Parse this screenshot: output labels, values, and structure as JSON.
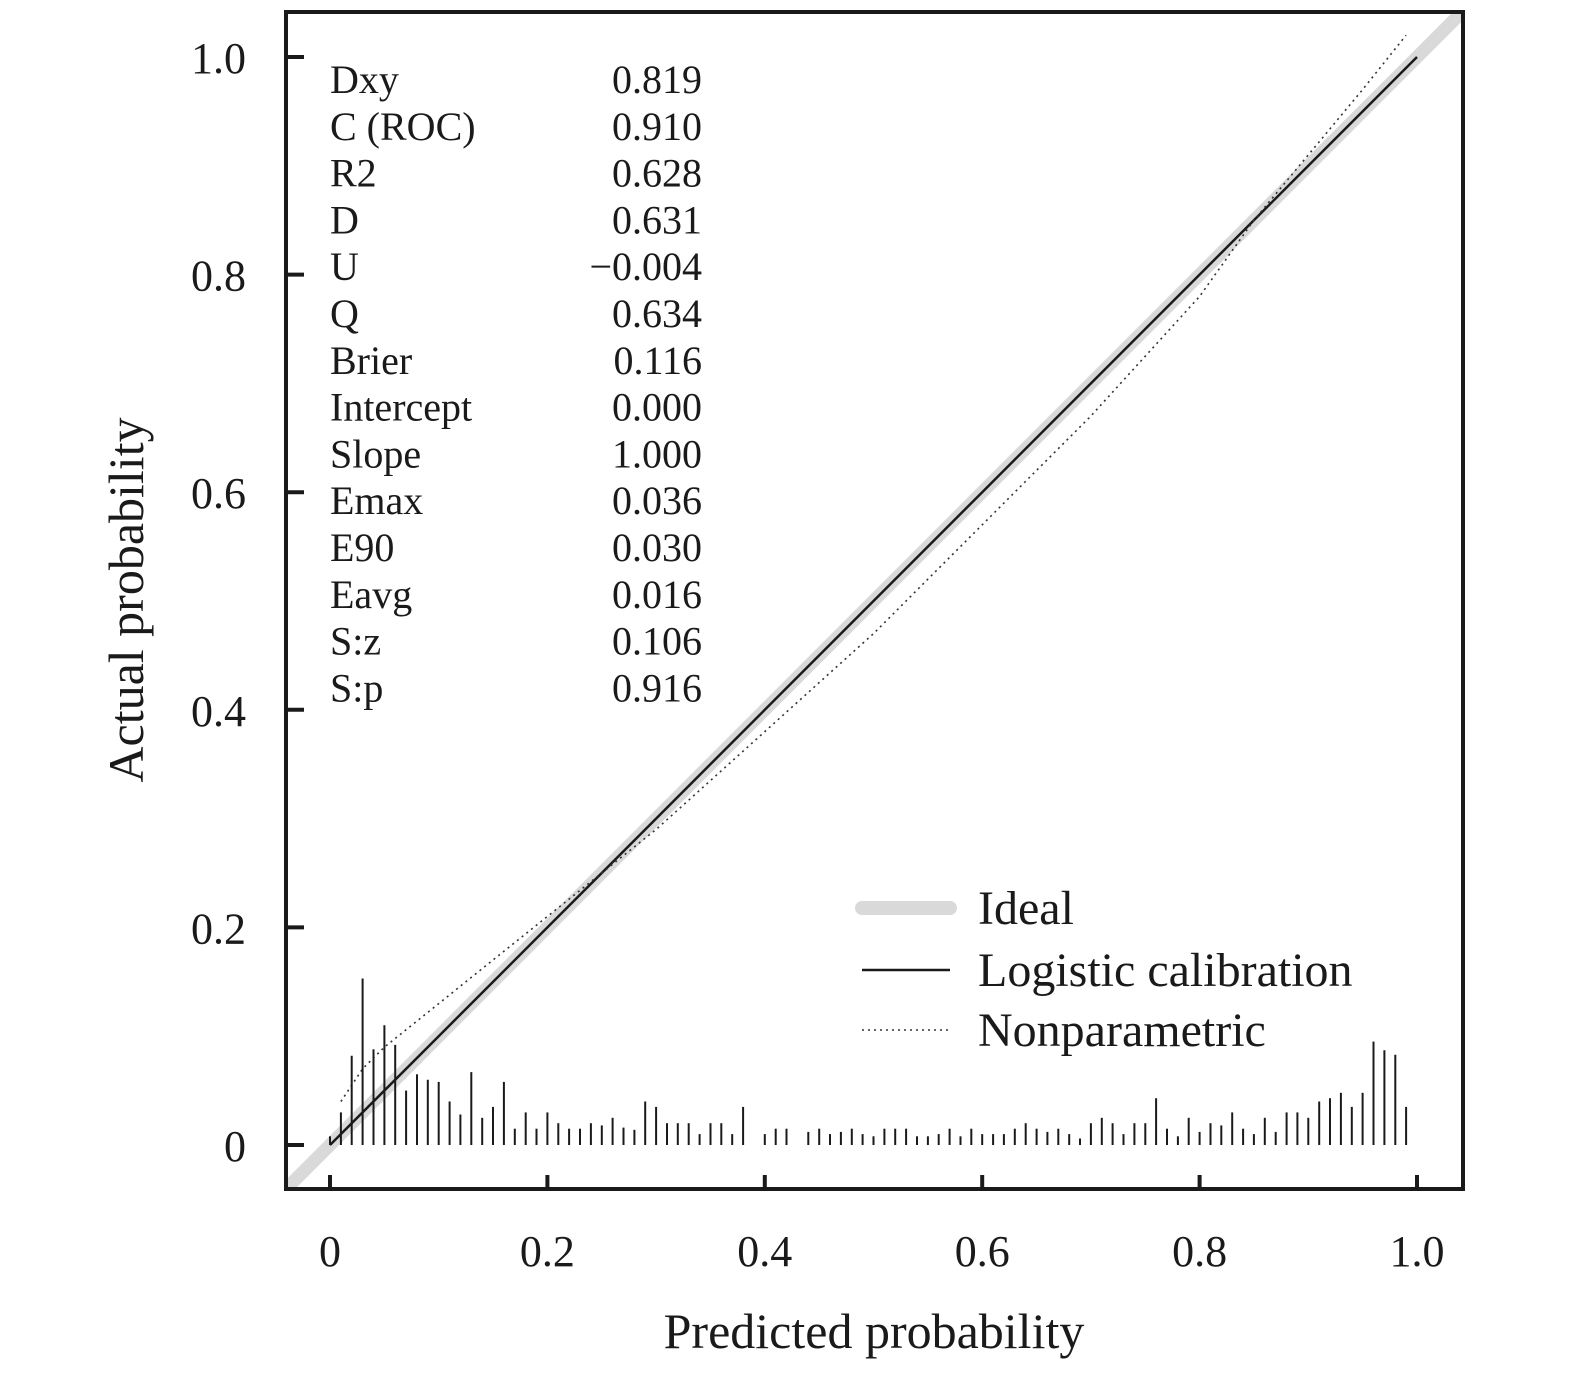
{
  "chart_data": {
    "type": "line",
    "xlabel": "Predicted probability",
    "ylabel": "Actual probability",
    "xlim": [
      0,
      1
    ],
    "ylim": [
      0,
      1
    ],
    "xticks": [
      0,
      0.2,
      0.4,
      0.6,
      0.8,
      1.0
    ],
    "xtick_labels": [
      "0",
      "0.2",
      "0.4",
      "0.6",
      "0.8",
      "1.0"
    ],
    "yticks": [
      0,
      0.2,
      0.4,
      0.6,
      0.8,
      1.0
    ],
    "ytick_labels": [
      "0",
      "0.2",
      "0.4",
      "0.6",
      "0.8",
      "1.0"
    ],
    "grid": false,
    "legend_position": "bottom-right",
    "stats": [
      {
        "label": "Dxy",
        "value": "0.819"
      },
      {
        "label": "C (ROC)",
        "value": "0.910"
      },
      {
        "label": "R2",
        "value": "0.628"
      },
      {
        "label": "D",
        "value": "0.631"
      },
      {
        "label": "U",
        "value": "−0.004"
      },
      {
        "label": "Q",
        "value": "0.634"
      },
      {
        "label": "Brier",
        "value": "0.116"
      },
      {
        "label": "Intercept",
        "value": "0.000"
      },
      {
        "label": "Slope",
        "value": "1.000"
      },
      {
        "label": "Emax",
        "value": "0.036"
      },
      {
        "label": "E90",
        "value": "0.030"
      },
      {
        "label": "Eavg",
        "value": "0.016"
      },
      {
        "label": "S:z",
        "value": "0.106"
      },
      {
        "label": "S:p",
        "value": "0.916"
      }
    ],
    "series": [
      {
        "name": "Ideal",
        "style": "thick-gray",
        "color": "#d9d9d9",
        "x": [
          -0.04,
          1.04
        ],
        "y": [
          -0.04,
          1.04
        ]
      },
      {
        "name": "Logistic calibration",
        "style": "solid",
        "color": "#1a1a1a",
        "x": [
          0.0,
          0.1,
          0.2,
          0.3,
          0.4,
          0.5,
          0.6,
          0.7,
          0.8,
          0.9,
          1.0
        ],
        "y": [
          0.0,
          0.1,
          0.2,
          0.3,
          0.4,
          0.5,
          0.6,
          0.7,
          0.8,
          0.9,
          1.0
        ]
      },
      {
        "name": "Nonparametric",
        "style": "dotted",
        "color": "#333333",
        "x": [
          0.01,
          0.03,
          0.05,
          0.1,
          0.15,
          0.2,
          0.3,
          0.4,
          0.5,
          0.6,
          0.7,
          0.8,
          0.85,
          0.9,
          0.95,
          0.99
        ],
        "y": [
          0.04,
          0.07,
          0.09,
          0.13,
          0.17,
          0.21,
          0.29,
          0.38,
          0.47,
          0.57,
          0.67,
          0.78,
          0.85,
          0.91,
          0.97,
          1.02
        ]
      }
    ],
    "rug": {
      "x": [
        0.0,
        0.01,
        0.02,
        0.03,
        0.04,
        0.05,
        0.06,
        0.07,
        0.08,
        0.09,
        0.1,
        0.11,
        0.12,
        0.13,
        0.14,
        0.15,
        0.16,
        0.17,
        0.18,
        0.19,
        0.2,
        0.21,
        0.22,
        0.23,
        0.24,
        0.25,
        0.26,
        0.27,
        0.28,
        0.29,
        0.3,
        0.31,
        0.32,
        0.33,
        0.34,
        0.35,
        0.36,
        0.37,
        0.38,
        0.4,
        0.41,
        0.42,
        0.44,
        0.45,
        0.46,
        0.47,
        0.48,
        0.49,
        0.5,
        0.51,
        0.52,
        0.53,
        0.54,
        0.55,
        0.56,
        0.57,
        0.58,
        0.59,
        0.6,
        0.61,
        0.62,
        0.63,
        0.64,
        0.65,
        0.66,
        0.67,
        0.68,
        0.69,
        0.7,
        0.71,
        0.72,
        0.73,
        0.74,
        0.75,
        0.76,
        0.77,
        0.78,
        0.79,
        0.8,
        0.81,
        0.82,
        0.83,
        0.84,
        0.85,
        0.86,
        0.87,
        0.88,
        0.89,
        0.9,
        0.91,
        0.92,
        0.93,
        0.94,
        0.95,
        0.96,
        0.97,
        0.98,
        0.99
      ],
      "y": [
        0.008,
        0.03,
        0.082,
        0.153,
        0.088,
        0.11,
        0.092,
        0.05,
        0.065,
        0.06,
        0.058,
        0.04,
        0.028,
        0.067,
        0.025,
        0.035,
        0.058,
        0.015,
        0.03,
        0.015,
        0.03,
        0.02,
        0.015,
        0.015,
        0.02,
        0.018,
        0.025,
        0.016,
        0.014,
        0.04,
        0.035,
        0.02,
        0.02,
        0.02,
        0.01,
        0.02,
        0.02,
        0.01,
        0.035,
        0.01,
        0.015,
        0.015,
        0.012,
        0.015,
        0.01,
        0.012,
        0.015,
        0.01,
        0.008,
        0.015,
        0.015,
        0.015,
        0.008,
        0.008,
        0.01,
        0.015,
        0.008,
        0.015,
        0.01,
        0.01,
        0.01,
        0.015,
        0.02,
        0.015,
        0.012,
        0.015,
        0.01,
        0.006,
        0.02,
        0.025,
        0.02,
        0.01,
        0.02,
        0.02,
        0.043,
        0.015,
        0.008,
        0.025,
        0.012,
        0.02,
        0.018,
        0.03,
        0.015,
        0.01,
        0.025,
        0.012,
        0.03,
        0.03,
        0.025,
        0.04,
        0.043,
        0.048,
        0.035,
        0.048,
        0.095,
        0.087,
        0.083,
        0.035
      ]
    }
  }
}
